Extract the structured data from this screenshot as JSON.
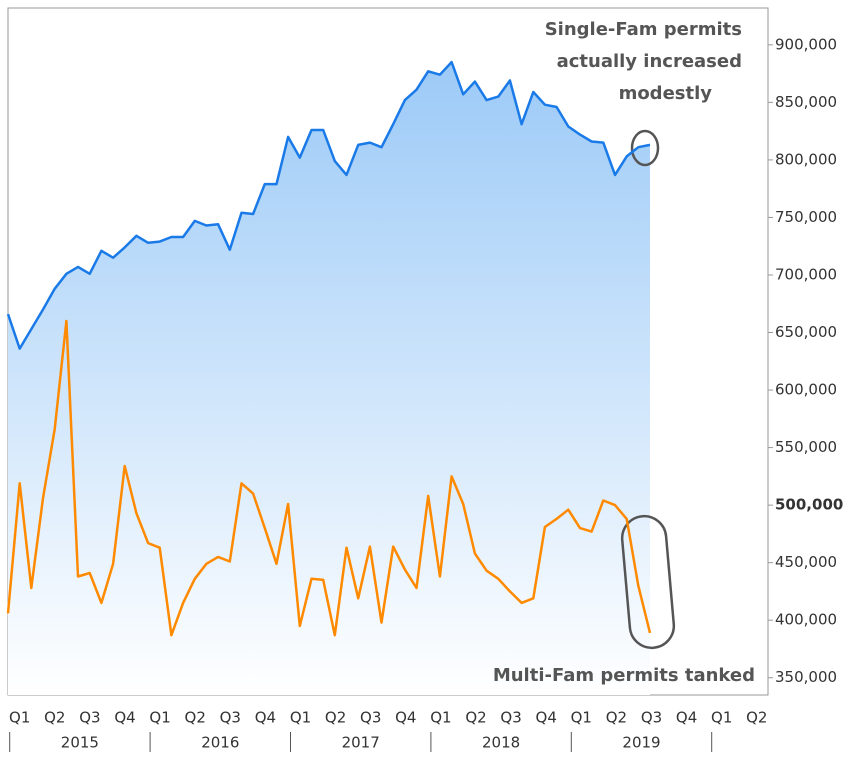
{
  "chart_data": {
    "type": "line",
    "series": [
      {
        "name": "Single-Fam permits",
        "color": "#1a7ae8",
        "fill": true,
        "values": [
          666000,
          636000,
          653000,
          670000,
          688000,
          701000,
          707000,
          701000,
          721000,
          715000,
          724000,
          734000,
          728000,
          729000,
          733000,
          733000,
          747000,
          743000,
          744000,
          722000,
          754000,
          753000,
          779000,
          779000,
          820000,
          802000,
          826000,
          826000,
          799000,
          787000,
          813000,
          815000,
          811000,
          831000,
          852000,
          861000,
          877000,
          874000,
          885000,
          857000,
          868000,
          852000,
          855000,
          869000,
          831000,
          859000,
          848000,
          846000,
          829000,
          822000,
          816000,
          815000,
          787000,
          803000,
          811000,
          813000
        ]
      },
      {
        "name": "Multi-Fam permits",
        "color": "#ff8a00",
        "fill": false,
        "values": [
          406000,
          519000,
          428000,
          506000,
          566000,
          660000,
          438000,
          441000,
          415000,
          449000,
          534000,
          493000,
          467000,
          463000,
          387000,
          415000,
          436000,
          449000,
          455000,
          451000,
          519000,
          510000,
          480000,
          449000,
          501000,
          395000,
          436000,
          435000,
          387000,
          463000,
          419000,
          464000,
          398000,
          464000,
          444000,
          428000,
          508000,
          438000,
          525000,
          501000,
          458000,
          443000,
          436000,
          425000,
          415000,
          419000,
          481000,
          488000,
          496000,
          480000,
          477000,
          504000,
          500000,
          488000,
          430000,
          389000
        ]
      }
    ],
    "quarter_labels": [
      "Q1",
      "Q2",
      "Q3",
      "Q4",
      "Q1",
      "Q2",
      "Q3",
      "Q4",
      "Q1",
      "Q2",
      "Q3",
      "Q4",
      "Q1",
      "Q2",
      "Q3",
      "Q4",
      "Q1",
      "Q2",
      "Q3",
      "Q4",
      "Q1",
      "Q2"
    ],
    "years": [
      "2015",
      "2016",
      "2017",
      "2018",
      "2019"
    ],
    "ylim": [
      335000,
      932000
    ],
    "yticks": [
      {
        "value": 350000,
        "label": "350,000"
      },
      {
        "value": 400000,
        "label": "400,000"
      },
      {
        "value": 450000,
        "label": "450,000"
      },
      {
        "value": 500000,
        "label": "500,000"
      },
      {
        "value": 550000,
        "label": "550,000"
      },
      {
        "value": 600000,
        "label": "600,000"
      },
      {
        "value": 650000,
        "label": "650,000"
      },
      {
        "value": 700000,
        "label": "700,000"
      },
      {
        "value": 750000,
        "label": "750,000"
      },
      {
        "value": 800000,
        "label": "800,000"
      },
      {
        "value": 850000,
        "label": "850,000"
      },
      {
        "value": 900000,
        "label": "900,000"
      }
    ],
    "annotations": [
      {
        "lines": [
          "Single-Fam permits",
          "actually increased",
          "modestly"
        ]
      },
      {
        "lines": [
          "Multi-Fam permits tanked"
        ]
      }
    ]
  }
}
